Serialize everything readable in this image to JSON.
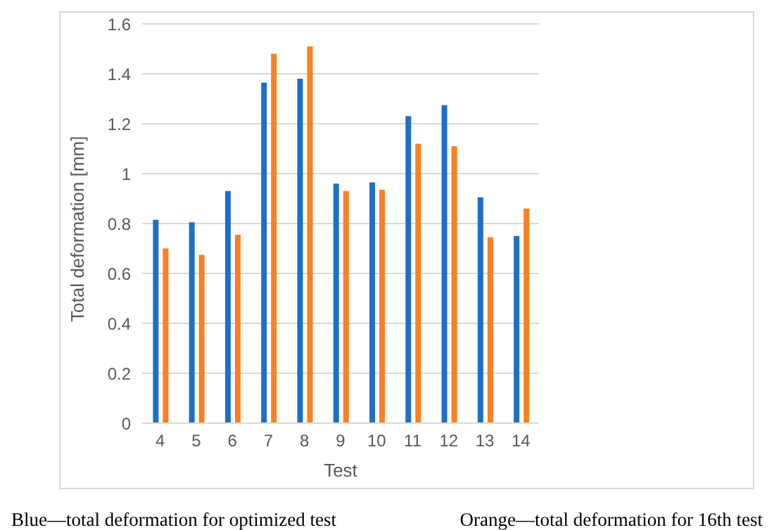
{
  "chart_data": {
    "type": "bar",
    "xlabel": "Test",
    "ylabel": "Total deformation [mm]",
    "categories": [
      "4",
      "5",
      "6",
      "7",
      "8",
      "9",
      "10",
      "11",
      "12",
      "13",
      "14"
    ],
    "series": [
      {
        "color": "#1f6fc5",
        "values": [
          0.815,
          0.805,
          0.93,
          1.365,
          1.38,
          0.96,
          0.965,
          1.23,
          1.275,
          0.905,
          0.75
        ]
      },
      {
        "color": "#fd7f23",
        "values": [
          0.7,
          0.675,
          0.755,
          1.48,
          1.51,
          0.93,
          0.935,
          1.12,
          1.11,
          0.745,
          0.86
        ]
      }
    ],
    "ylim": [
      0,
      1.6
    ],
    "yticks": [
      0,
      0.2,
      0.4,
      0.6,
      0.8,
      1,
      1.2,
      1.4,
      1.6
    ],
    "grid": "y",
    "legend": false,
    "annotations": [
      "Blue—total deformation for optimized test",
      "Orange—total deformation for 16th test"
    ]
  }
}
